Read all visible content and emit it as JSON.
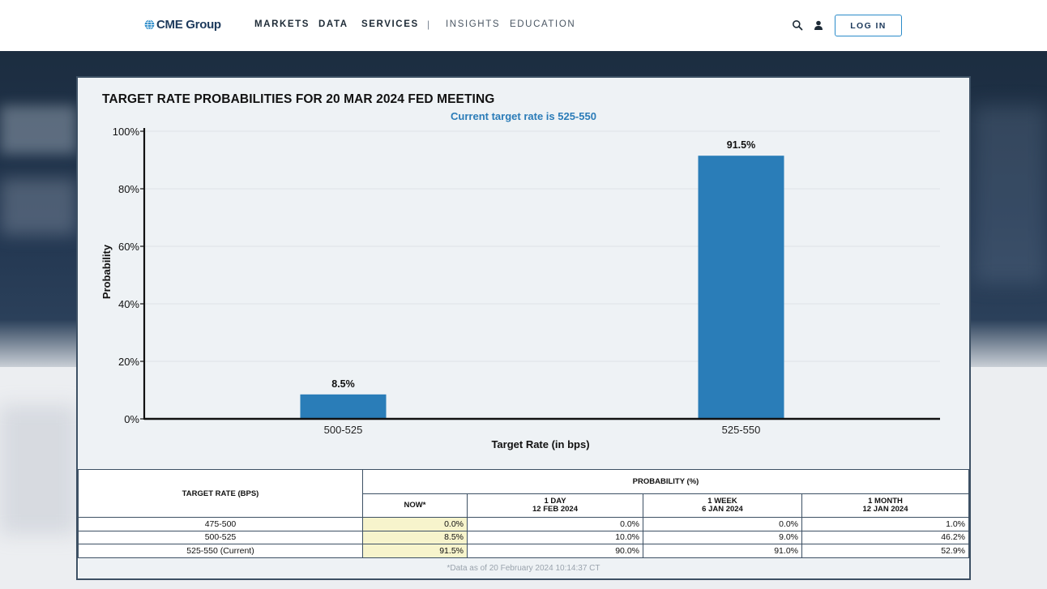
{
  "header": {
    "logo_text": "CME Group",
    "nav": [
      {
        "label": "MARKETS"
      },
      {
        "label": "DATA"
      },
      {
        "label": "SERVICES"
      },
      {
        "label": "INSIGHTS"
      },
      {
        "label": "EDUCATION"
      }
    ],
    "separator": "|",
    "login_label": "LOG IN",
    "icons": [
      "search-icon",
      "user-icon"
    ]
  },
  "colors": {
    "accent": "#2b7cb8",
    "bar": "#2a7db8",
    "now_cell": "#f7f4cc",
    "border": "#3d5064"
  },
  "chart_data": {
    "type": "bar",
    "title": "TARGET RATE PROBABILITIES FOR 20 MAR 2024 FED MEETING",
    "subtitle": "Current target rate is 525-550",
    "categories": [
      "500-525",
      "525-550"
    ],
    "values": [
      8.5,
      91.5
    ],
    "data_labels": [
      "8.5%",
      "91.5%"
    ],
    "xlabel": "Target Rate (in bps)",
    "ylabel": "Probability",
    "ylim": [
      0,
      100
    ],
    "yticks": [
      0,
      20,
      40,
      60,
      80,
      100
    ],
    "ytick_labels": [
      "0%",
      "20%",
      "40%",
      "60%",
      "80%",
      "100%"
    ],
    "grid": true
  },
  "table": {
    "row_header": "TARGET RATE (BPS)",
    "group_header": "PROBABILITY (%)",
    "columns": [
      {
        "line1": "NOW*",
        "line2": ""
      },
      {
        "line1": "1 DAY",
        "line2": "12 FEB 2024"
      },
      {
        "line1": "1 WEEK",
        "line2": "6 JAN 2024"
      },
      {
        "line1": "1 MONTH",
        "line2": "12 JAN 2024"
      }
    ],
    "rows": [
      {
        "rate": "475-500",
        "values": [
          "0.0%",
          "0.0%",
          "0.0%",
          "1.0%"
        ]
      },
      {
        "rate": "500-525",
        "values": [
          "8.5%",
          "10.0%",
          "9.0%",
          "46.2%"
        ]
      },
      {
        "rate": "525-550 (Current)",
        "values": [
          "91.5%",
          "90.0%",
          "91.0%",
          "52.9%"
        ]
      }
    ],
    "footnote": "*Data as of 20 February 2024 10:14:37 CT"
  }
}
